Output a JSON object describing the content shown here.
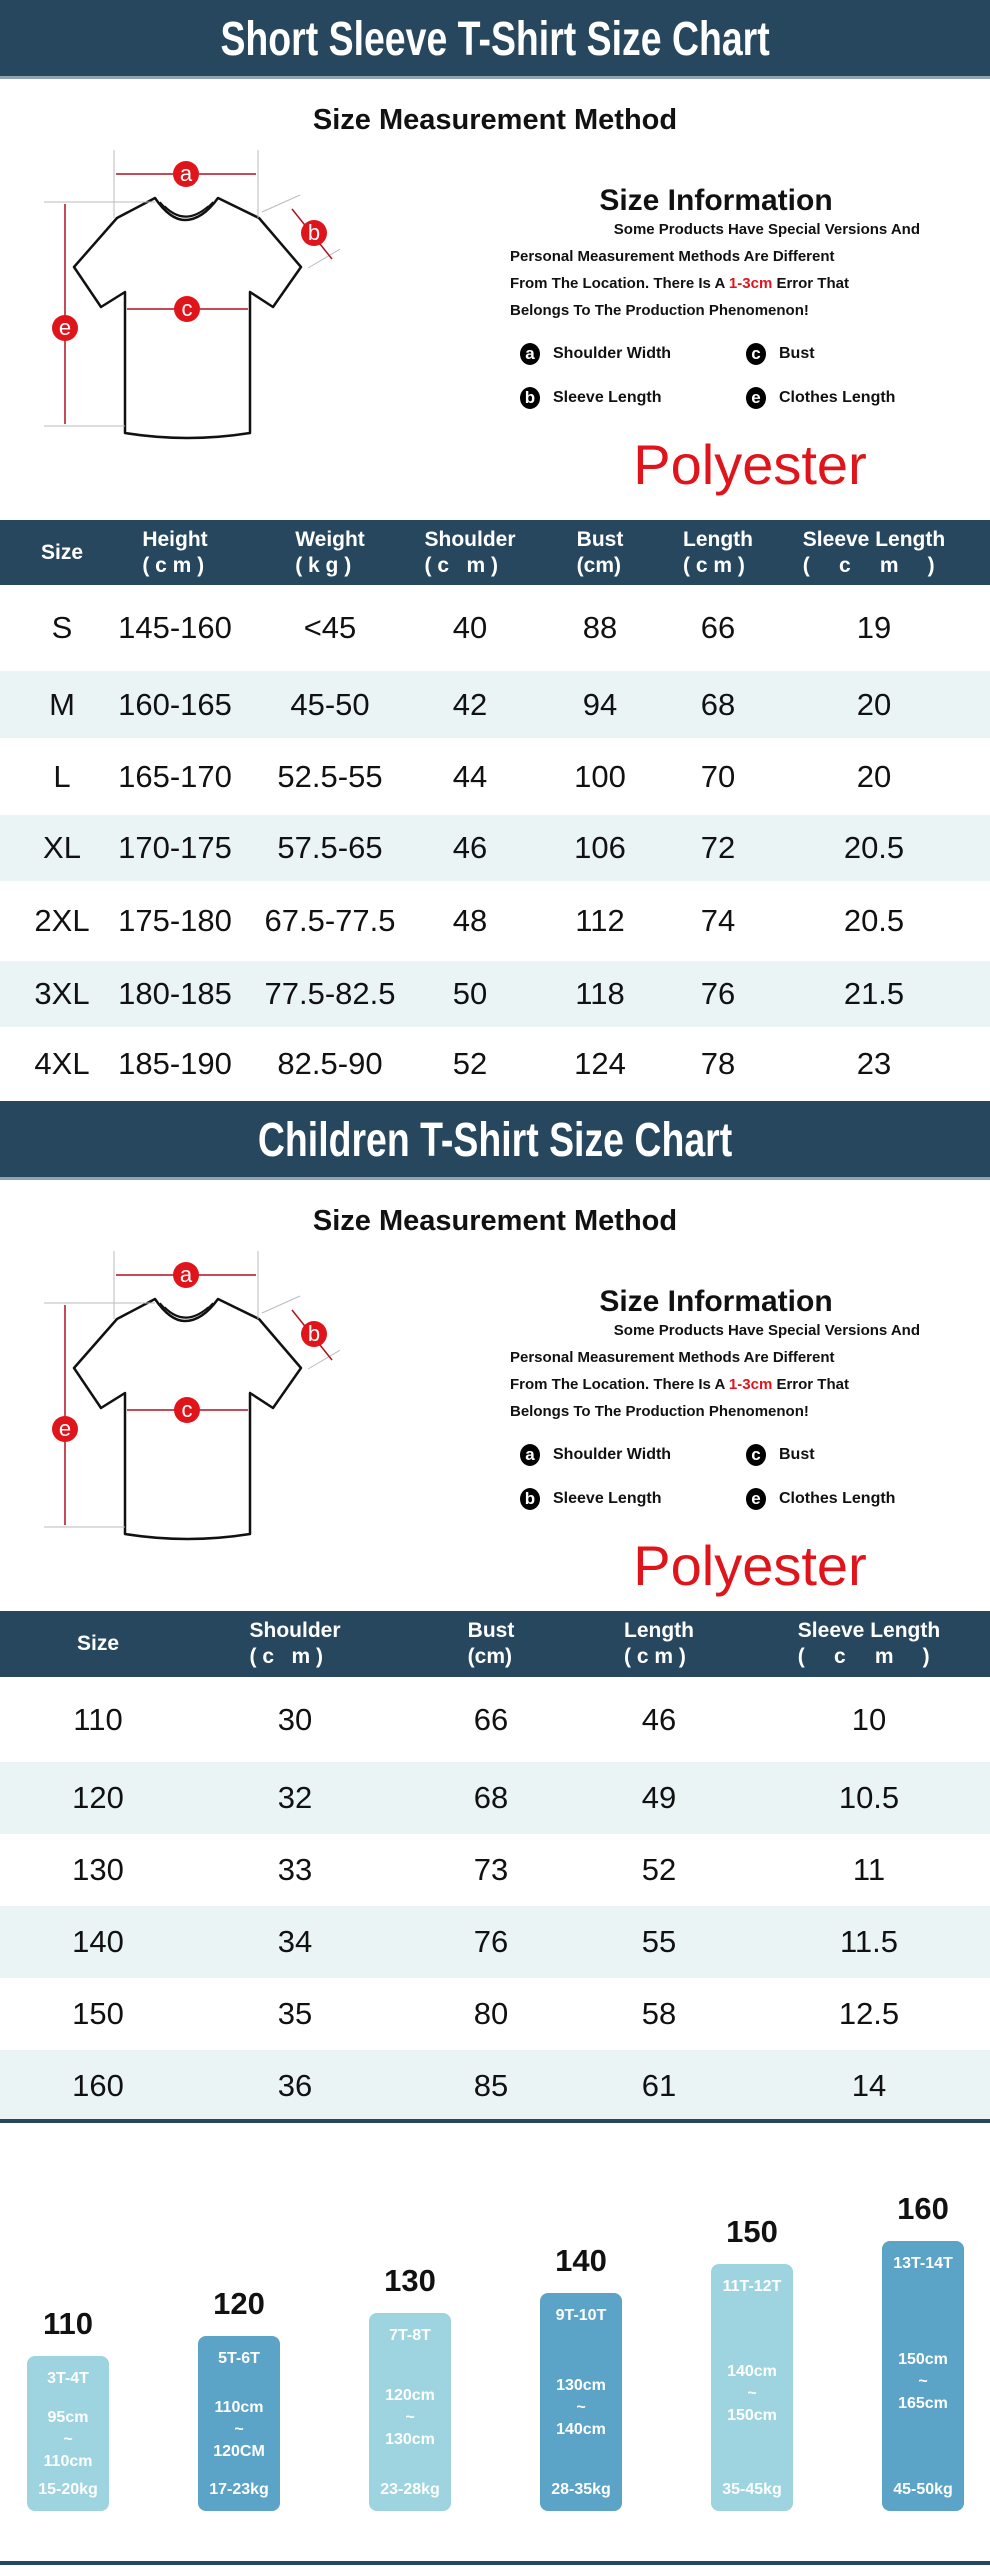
{
  "sections": [
    {
      "title": "Short Sleeve T-Shirt Size Chart",
      "method_title": "Size Measurement Method",
      "info_title": "Size Information",
      "info_lines": [
        "Some Products Have Special Versions And",
        "Personal Measurement Methods Are Different",
        "From The Location. There Is A ",
        "Belongs To The Production Phenomenon!"
      ],
      "error_value": "1-3cm",
      "error_suffix": " Error That",
      "legend": [
        {
          "letter": "a",
          "label": "Shoulder Width"
        },
        {
          "letter": "c",
          "label": "Bust"
        },
        {
          "letter": "b",
          "label": "Sleeve Length"
        },
        {
          "letter": "e",
          "label": "Clothes Length"
        }
      ],
      "diagram_letters": [
        "a",
        "b",
        "c",
        "e"
      ],
      "material": "Polyester"
    },
    {
      "title": "Children  T-Shirt Size Chart",
      "method_title": "Size Measurement Method",
      "info_title": "Size Information",
      "info_lines": [
        "Some Products Have Special Versions And",
        "Personal Measurement Methods Are Different",
        "From The Location. There Is A ",
        "Belongs To The Production Phenomenon!"
      ],
      "error_value": "1-3cm",
      "error_suffix": " Error That",
      "legend": [
        {
          "letter": "a",
          "label": "Shoulder Width"
        },
        {
          "letter": "c",
          "label": "Bust"
        },
        {
          "letter": "b",
          "label": "Sleeve Length"
        },
        {
          "letter": "e",
          "label": "Clothes Length"
        }
      ],
      "diagram_letters": [
        "a",
        "b",
        "c",
        "e"
      ],
      "material": "Polyester"
    }
  ],
  "adult_table": {
    "headers": [
      "Size",
      "Height\n( c m )",
      "Weight\n( k g )",
      "Shoulder\n( c   m )",
      "Bust\n(cm)",
      "Length\n( c m )",
      "Sleeve Length\n(     c     m     )"
    ],
    "rows": [
      [
        "S",
        "145-160",
        "<45",
        "40",
        "88",
        "66",
        "19"
      ],
      [
        "M",
        "160-165",
        "45-50",
        "42",
        "94",
        "68",
        "20"
      ],
      [
        "L",
        "165-170",
        "52.5-55",
        "44",
        "100",
        "70",
        "20"
      ],
      [
        "XL",
        "170-175",
        "57.5-65",
        "46",
        "106",
        "72",
        "20.5"
      ],
      [
        "2XL",
        "175-180",
        "67.5-77.5",
        "48",
        "112",
        "74",
        "20.5"
      ],
      [
        "3XL",
        "180-185",
        "77.5-82.5",
        "50",
        "118",
        "76",
        "21.5"
      ],
      [
        "4XL",
        "185-190",
        "82.5-90",
        "52",
        "124",
        "78",
        "23"
      ]
    ]
  },
  "children_table": {
    "headers": [
      "Size",
      "Shoulder\n( c   m )",
      "Bust\n(cm)",
      "Length\n( c m )",
      "Sleeve Length\n(     c     m     )"
    ],
    "rows": [
      [
        "110",
        "30",
        "66",
        "46",
        "10"
      ],
      [
        "120",
        "32",
        "68",
        "49",
        "10.5"
      ],
      [
        "130",
        "33",
        "73",
        "52",
        "11"
      ],
      [
        "140",
        "34",
        "76",
        "55",
        "11.5"
      ],
      [
        "150",
        "35",
        "80",
        "58",
        "12.5"
      ],
      [
        "160",
        "36",
        "85",
        "61",
        "14"
      ]
    ]
  },
  "children_sizes": [
    {
      "size": "110",
      "age": "3T-4T",
      "height_from": "95cm",
      "sep": "~",
      "height_to": "110cm",
      "weight": "15-20kg"
    },
    {
      "size": "120",
      "age": "5T-6T",
      "height_from": "110cm",
      "sep": "~",
      "height_to": "120CM",
      "weight": "17-23kg"
    },
    {
      "size": "130",
      "age": "7T-8T",
      "height_from": "120cm",
      "sep": "~",
      "height_to": "130cm",
      "weight": "23-28kg"
    },
    {
      "size": "140",
      "age": "9T-10T",
      "height_from": "130cm",
      "sep": "~",
      "height_to": "140cm",
      "weight": "28-35kg"
    },
    {
      "size": "150",
      "age": "11T-12T",
      "height_from": "140cm",
      "sep": "~",
      "height_to": "150cm",
      "weight": "35-45kg"
    },
    {
      "size": "160",
      "age": "13T-14T",
      "height_from": "150cm",
      "sep": "~",
      "height_to": "165cm",
      "weight": "45-50kg"
    }
  ],
  "colors": {
    "header": "#27475f",
    "accent_red": "#e0141b",
    "row_alt": "#eaf4f5",
    "bar_light": "#9dd4e0",
    "bar_dark": "#5ba3c7"
  }
}
